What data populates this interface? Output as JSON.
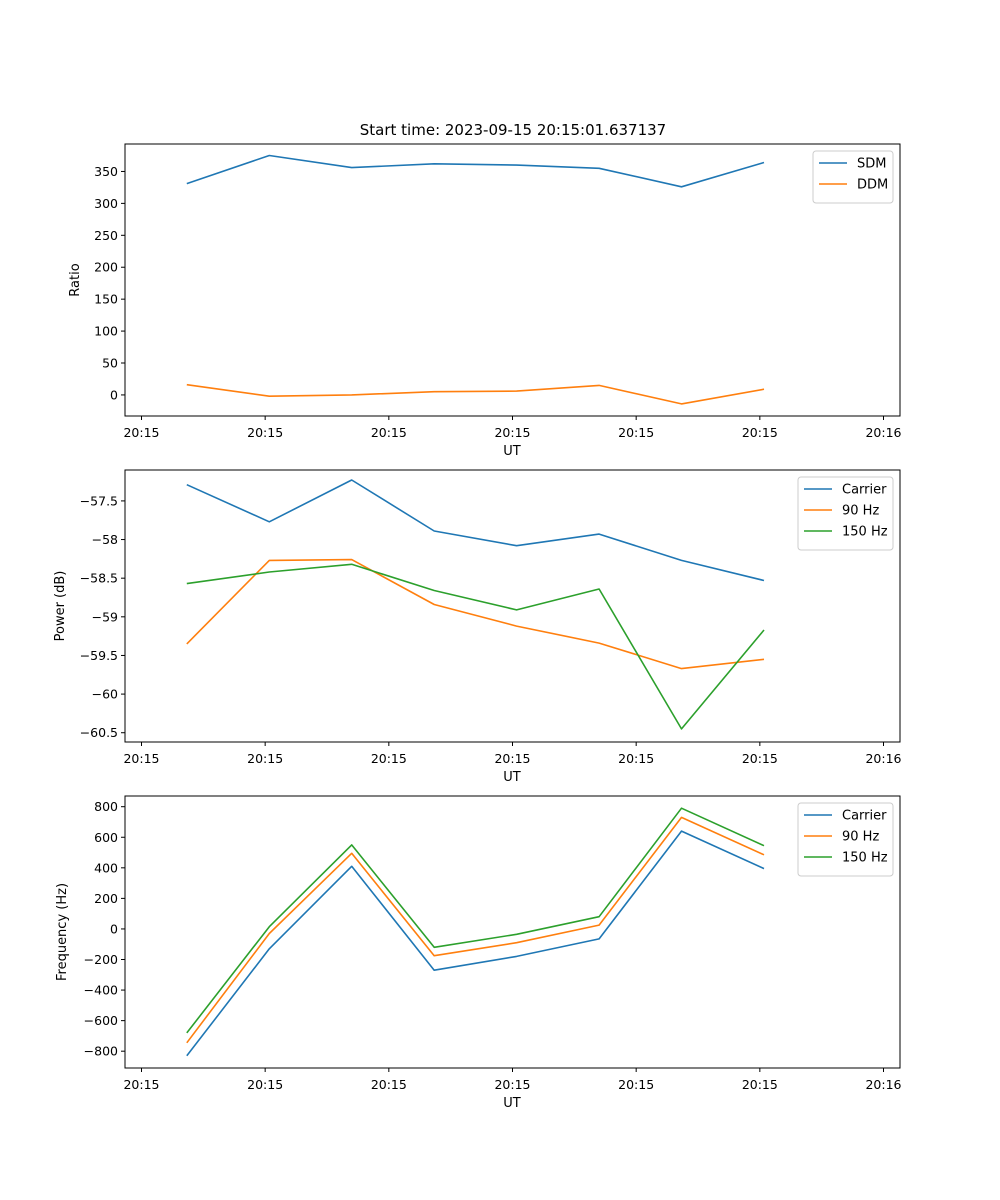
{
  "chart_data": [
    {
      "type": "line",
      "title": "Start time: 2023-09-15 20:15:01.637137",
      "xlabel": "UT",
      "ylabel": "Ratio",
      "xlim": [
        0,
        9.4
      ],
      "ylim": [
        -33,
        393
      ],
      "yticks": [
        0,
        50,
        100,
        150,
        200,
        250,
        300,
        350
      ],
      "x": [
        0.75,
        1.75,
        2.75,
        3.75,
        4.75,
        5.75,
        6.75,
        7.75
      ],
      "xticks": [
        {
          "value": 0.2,
          "label": "20:15"
        },
        {
          "value": 1.7,
          "label": "20:15"
        },
        {
          "value": 3.2,
          "label": "20:15"
        },
        {
          "value": 4.7,
          "label": "20:15"
        },
        {
          "value": 6.2,
          "label": "20:15"
        },
        {
          "value": 7.7,
          "label": "20:15"
        },
        {
          "value": 9.2,
          "label": "20:16"
        }
      ],
      "legend_position": "top-right",
      "series": [
        {
          "name": "SDM",
          "color": "#1f77b4",
          "values": [
            331,
            375,
            356,
            362,
            360,
            355,
            326,
            364
          ]
        },
        {
          "name": "DDM",
          "color": "#ff7f0e",
          "values": [
            16,
            -2,
            0,
            5,
            6,
            15,
            -14,
            9
          ]
        }
      ]
    },
    {
      "type": "line",
      "title": "",
      "xlabel": "UT",
      "ylabel": "Power (dB)",
      "xlim": [
        0,
        9.4
      ],
      "ylim": [
        -60.62,
        -57.1
      ],
      "yticks": [
        -57.5,
        -58.0,
        -58.5,
        -59.0,
        -59.5,
        -60.0,
        -60.5
      ],
      "x": [
        0.75,
        1.75,
        2.75,
        3.75,
        4.75,
        5.75,
        6.75,
        7.75
      ],
      "xticks": [
        {
          "value": 0.2,
          "label": "20:15"
        },
        {
          "value": 1.7,
          "label": "20:15"
        },
        {
          "value": 3.2,
          "label": "20:15"
        },
        {
          "value": 4.7,
          "label": "20:15"
        },
        {
          "value": 6.2,
          "label": "20:15"
        },
        {
          "value": 7.7,
          "label": "20:15"
        },
        {
          "value": 9.2,
          "label": "20:16"
        }
      ],
      "legend_position": "top-right",
      "series": [
        {
          "name": "Carrier",
          "color": "#1f77b4",
          "values": [
            -57.29,
            -57.77,
            -57.23,
            -57.89,
            -58.08,
            -57.93,
            -58.27,
            -58.53
          ]
        },
        {
          "name": "90 Hz",
          "color": "#ff7f0e",
          "values": [
            -59.35,
            -58.27,
            -58.26,
            -58.84,
            -59.12,
            -59.34,
            -59.67,
            -59.55
          ]
        },
        {
          "name": "150 Hz",
          "color": "#2ca02c",
          "values": [
            -58.57,
            -58.42,
            -58.32,
            -58.66,
            -58.91,
            -58.64,
            -60.45,
            -59.17
          ]
        }
      ]
    },
    {
      "type": "line",
      "title": "",
      "xlabel": "UT",
      "ylabel": "Frequency (Hz)",
      "xlim": [
        0,
        9.4
      ],
      "ylim": [
        -910,
        870
      ],
      "yticks": [
        800,
        600,
        400,
        200,
        0,
        -200,
        -400,
        -600,
        -800
      ],
      "x": [
        0.75,
        1.75,
        2.75,
        3.75,
        4.75,
        5.75,
        6.75,
        7.75
      ],
      "xticks": [
        {
          "value": 0.2,
          "label": "20:15"
        },
        {
          "value": 1.7,
          "label": "20:15"
        },
        {
          "value": 3.2,
          "label": "20:15"
        },
        {
          "value": 4.7,
          "label": "20:15"
        },
        {
          "value": 6.2,
          "label": "20:15"
        },
        {
          "value": 7.7,
          "label": "20:15"
        },
        {
          "value": 9.2,
          "label": "20:16"
        }
      ],
      "legend_position": "top-right",
      "series": [
        {
          "name": "Carrier",
          "color": "#1f77b4",
          "values": [
            -830,
            -130,
            410,
            -270,
            -180,
            -65,
            640,
            395
          ]
        },
        {
          "name": "90 Hz",
          "color": "#ff7f0e",
          "values": [
            -745,
            -30,
            495,
            -175,
            -90,
            25,
            730,
            485
          ]
        },
        {
          "name": "150 Hz",
          "color": "#2ca02c",
          "values": [
            -680,
            15,
            550,
            -120,
            -35,
            80,
            790,
            545
          ]
        }
      ]
    }
  ]
}
